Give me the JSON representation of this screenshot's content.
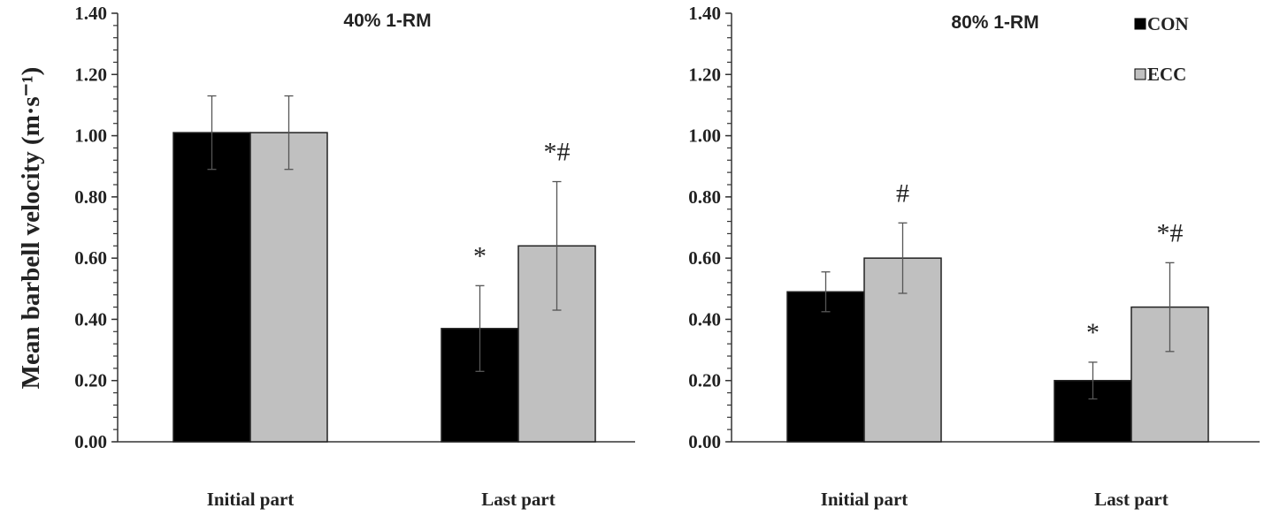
{
  "chart_data": [
    {
      "type": "bar",
      "title": "40% 1-RM",
      "ylabel": "Mean barbell  velocity (m·s⁻¹)",
      "xlabel": "",
      "categories": [
        "Initial part",
        "Last part"
      ],
      "ylim": [
        0,
        1.4
      ],
      "yticks": [
        "0.00",
        "0.20",
        "0.40",
        "0.60",
        "0.80",
        "1.00",
        "1.20",
        "1.40"
      ],
      "series": [
        {
          "name": "CON",
          "color": "#000000",
          "values": [
            1.01,
            0.37
          ],
          "errors": [
            0.12,
            0.14
          ],
          "annotations": [
            "",
            "*"
          ]
        },
        {
          "name": "ECC",
          "color": "#c0c0c0",
          "values": [
            1.01,
            0.64
          ],
          "errors": [
            0.12,
            0.21
          ],
          "annotations": [
            "",
            "*#"
          ]
        }
      ]
    },
    {
      "type": "bar",
      "title": "80% 1-RM",
      "xlabel": "",
      "categories": [
        "Initial part",
        "Last part"
      ],
      "ylim": [
        0,
        1.4
      ],
      "yticks": [
        "0.00",
        "0.20",
        "0.40",
        "0.60",
        "0.80",
        "1.00",
        "1.20",
        "1.40"
      ],
      "legend": {
        "position": "top-right",
        "entries": [
          "CON",
          "ECC"
        ]
      },
      "series": [
        {
          "name": "CON",
          "color": "#000000",
          "values": [
            0.49,
            0.2
          ],
          "errors": [
            0.065,
            0.06
          ],
          "annotations": [
            "",
            "*"
          ]
        },
        {
          "name": "ECC",
          "color": "#c0c0c0",
          "values": [
            0.6,
            0.44
          ],
          "errors": [
            0.115,
            0.145
          ],
          "annotations": [
            "#",
            "*#"
          ]
        }
      ]
    }
  ]
}
